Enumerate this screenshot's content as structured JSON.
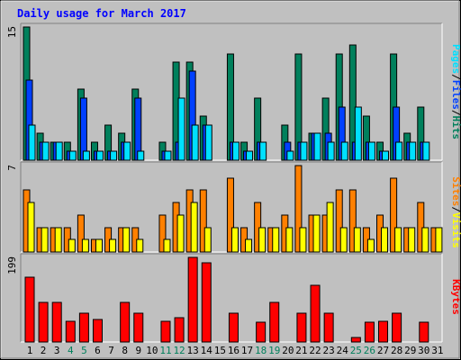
{
  "title": "Daily usage for March 2017",
  "colors": {
    "background": "#c0c0c0",
    "plot": "#c0c0c0",
    "title": "#0000ff",
    "hits": "#00805c",
    "files": "#0040ff",
    "pages": "#00e0ff",
    "visits": "#ffff00",
    "sites": "#ff8000",
    "kbytes": "#ff0000",
    "weekend_label": "#00805c",
    "weekday_label": "#000000"
  },
  "legend": {
    "pages": "Pages",
    "files": "Files",
    "hits": "Hits",
    "sites": "Sites",
    "visits": "Visits",
    "kbytes": "KBytes",
    "sep": "/"
  },
  "chart_data": {
    "type": "bar",
    "title": "Daily usage for March 2017",
    "categories": [
      "1",
      "2",
      "3",
      "4",
      "5",
      "6",
      "7",
      "8",
      "9",
      "10",
      "11",
      "12",
      "13",
      "14",
      "15",
      "16",
      "17",
      "18",
      "19",
      "20",
      "21",
      "22",
      "23",
      "24",
      "25",
      "26",
      "27",
      "28",
      "29",
      "30",
      "31"
    ],
    "weekend_days": [
      "4",
      "5",
      "11",
      "12",
      "18",
      "19",
      "25",
      "26"
    ],
    "panels": [
      {
        "name": "hits-files-pages",
        "ymax": 15,
        "ymax_label": "15",
        "series": [
          {
            "name": "Hits",
            "values": [
              15,
              3,
              2,
              2,
              8,
              2,
              4,
              3,
              8,
              0,
              2,
              11,
              11,
              5,
              0,
              12,
              2,
              7,
              0,
              4,
              12,
              3,
              7,
              12,
              13,
              5,
              2,
              12,
              3,
              6,
              0
            ]
          },
          {
            "name": "Files",
            "values": [
              9,
              2,
              2,
              1,
              7,
              1,
              1,
              2,
              7,
              0,
              1,
              2,
              10,
              4,
              0,
              2,
              1,
              2,
              0,
              2,
              2,
              3,
              3,
              6,
              2,
              2,
              1,
              6,
              2,
              2,
              0
            ]
          },
          {
            "name": "Pages",
            "values": [
              4,
              2,
              2,
              1,
              1,
              1,
              1,
              2,
              1,
              0,
              1,
              7,
              4,
              4,
              0,
              2,
              1,
              2,
              0,
              1,
              2,
              3,
              2,
              2,
              6,
              2,
              1,
              2,
              2,
              2,
              0
            ]
          }
        ]
      },
      {
        "name": "sites-visits",
        "ymax": 7,
        "ymax_label": "7",
        "series": [
          {
            "name": "Sites",
            "values": [
              5,
              2,
              2,
              2,
              3,
              1,
              2,
              2,
              2,
              0,
              3,
              4,
              5,
              5,
              0,
              6,
              2,
              4,
              2,
              3,
              7,
              3,
              3,
              5,
              5,
              2,
              3,
              6,
              2,
              4,
              2
            ]
          },
          {
            "name": "Visits",
            "values": [
              4,
              2,
              2,
              1,
              1,
              1,
              1,
              2,
              1,
              0,
              1,
              3,
              4,
              2,
              0,
              2,
              1,
              2,
              2,
              2,
              2,
              3,
              4,
              2,
              2,
              1,
              2,
              2,
              2,
              2,
              2
            ]
          }
        ]
      },
      {
        "name": "kbytes",
        "ymax": 199,
        "ymax_label": "199",
        "series": [
          {
            "name": "KBytes",
            "values": [
              153,
              94,
              94,
              48,
              68,
              52,
              0,
              94,
              68,
              0,
              48,
              57,
              199,
              187,
              0,
              68,
              0,
              47,
              94,
              0,
              67,
              134,
              68,
              0,
              10,
              47,
              48,
              67,
              0,
              47,
              0
            ]
          }
        ]
      }
    ]
  }
}
